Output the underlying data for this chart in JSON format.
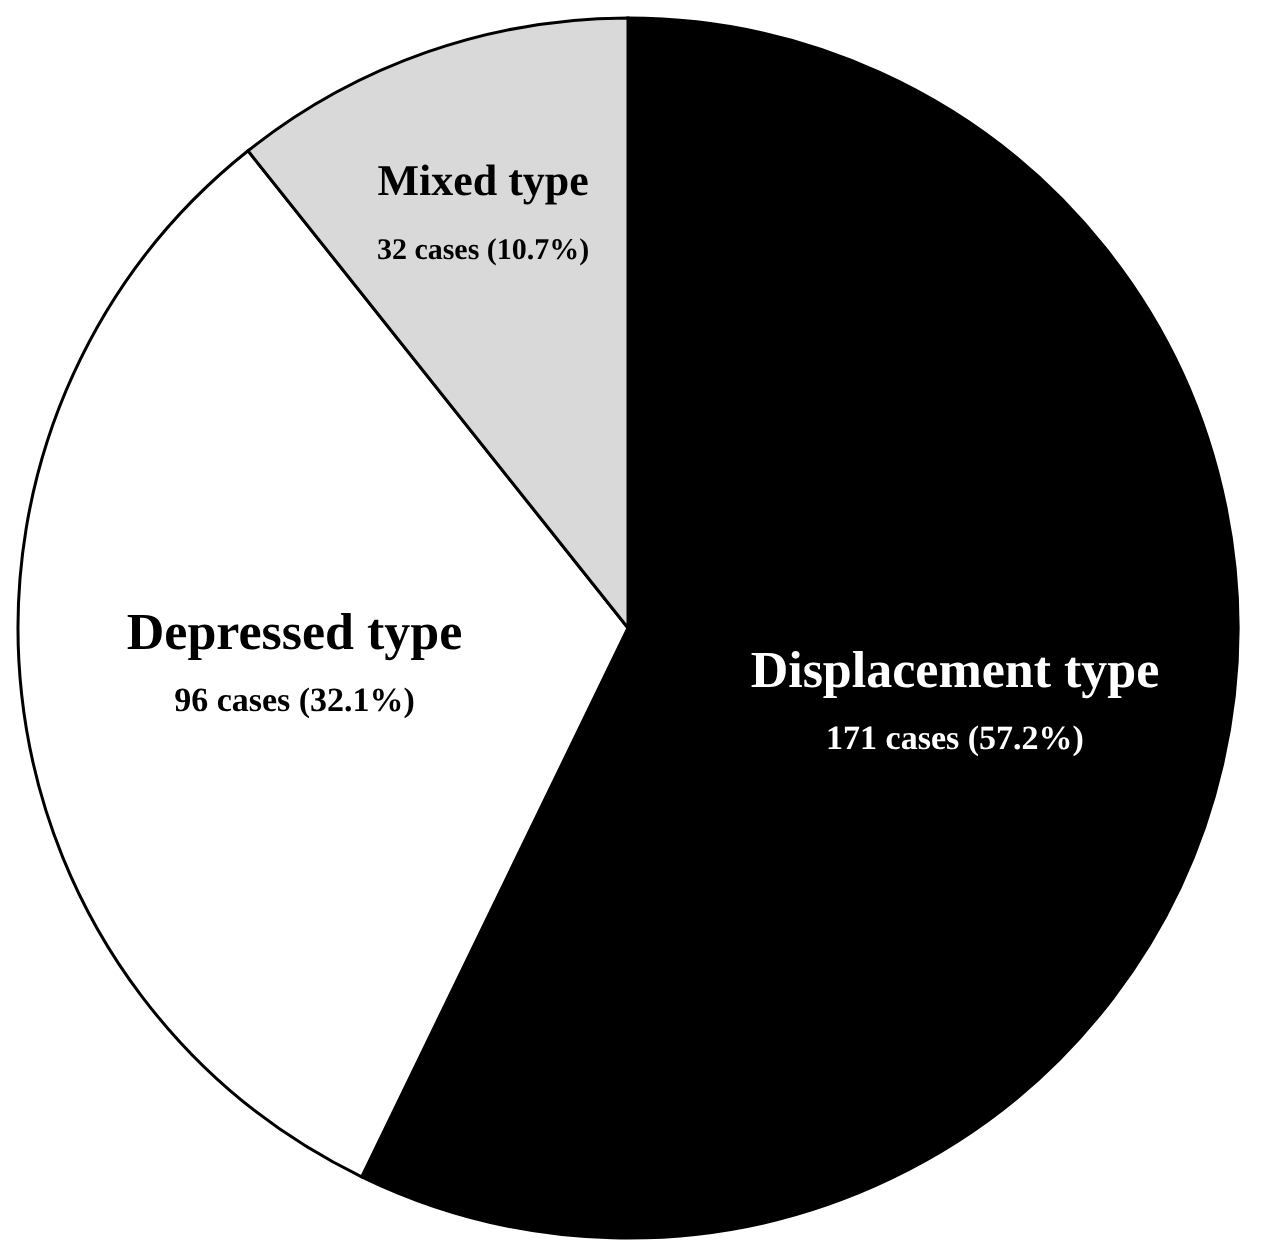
{
  "chart_data": {
    "type": "pie",
    "categories": [
      "Displacement type",
      "Depressed type",
      "Mixed type"
    ],
    "values": [
      171,
      96,
      32
    ],
    "colors": [
      "#000000",
      "#ffffff",
      "#d9d9d9"
    ],
    "value_labels": [
      "171 cases (57.2%)",
      "96 cases (32.1%)",
      "32 cases (10.7%)"
    ]
  }
}
